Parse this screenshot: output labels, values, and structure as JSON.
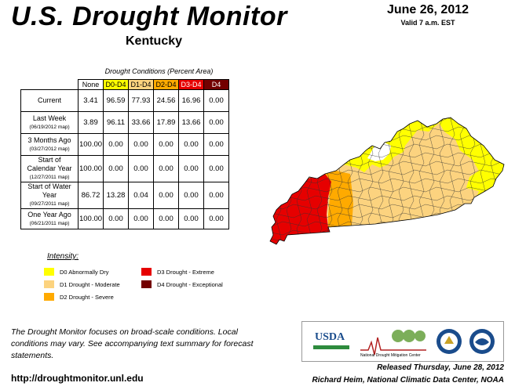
{
  "header": {
    "title": "U.S. Drought Monitor",
    "subtitle": "Kentucky",
    "date": "June 26, 2012",
    "valid": "Valid 7 a.m. EST"
  },
  "table": {
    "caption": "Drought Conditions (Percent Area)",
    "columns": [
      "None",
      "D0-D4",
      "D1-D4",
      "D2-D4",
      "D3-D4",
      "D4"
    ],
    "column_colors": [
      "#ffffff",
      "#ffff00",
      "#fcd37f",
      "#ffaa00",
      "#e60000",
      "#730000"
    ],
    "column_text_colors": [
      "#000000",
      "#000000",
      "#000000",
      "#000000",
      "#ffffff",
      "#ffffff"
    ],
    "rows": [
      {
        "label": "Current",
        "sub": "",
        "values": [
          "3.41",
          "96.59",
          "77.93",
          "24.56",
          "16.96",
          "0.00"
        ]
      },
      {
        "label": "Last Week",
        "sub": "(06/19/2012 map)",
        "values": [
          "3.89",
          "96.11",
          "33.66",
          "17.89",
          "13.66",
          "0.00"
        ]
      },
      {
        "label": "3 Months Ago",
        "sub": "(03/27/2012 map)",
        "values": [
          "100.00",
          "0.00",
          "0.00",
          "0.00",
          "0.00",
          "0.00"
        ]
      },
      {
        "label": "Start of Calendar Year",
        "sub": "(12/27/2011 map)",
        "values": [
          "100.00",
          "0.00",
          "0.00",
          "0.00",
          "0.00",
          "0.00"
        ]
      },
      {
        "label": "Start of Water Year",
        "sub": "(09/27/2011 map)",
        "values": [
          "86.72",
          "13.28",
          "0.04",
          "0.00",
          "0.00",
          "0.00"
        ]
      },
      {
        "label": "One Year Ago",
        "sub": "(06/21/2011 map)",
        "values": [
          "100.00",
          "0.00",
          "0.00",
          "0.00",
          "0.00",
          "0.00"
        ]
      }
    ]
  },
  "legend": {
    "heading": "Intensity:",
    "items": [
      {
        "label": "D0 Abnormally Dry",
        "color": "#ffff00"
      },
      {
        "label": "D1 Drought - Moderate",
        "color": "#fcd37f"
      },
      {
        "label": "D2 Drought - Severe",
        "color": "#ffaa00"
      },
      {
        "label": "D3 Drought - Extreme",
        "color": "#e60000"
      },
      {
        "label": "D4 Drought - Exceptional",
        "color": "#730000"
      }
    ]
  },
  "footer": {
    "note": "The Drought Monitor focuses on broad-scale conditions. Local conditions may vary. See accompanying text summary for forecast statements.",
    "url": "http://droughtmonitor.unl.edu",
    "released": "Released Thursday, June 28, 2012",
    "author": "Richard Heim, National Climatic Data Center, NOAA"
  },
  "logos": {
    "usda": "USDA",
    "ndmc": "National Drought Mitigation Center"
  },
  "map_colors": {
    "none": "#ffffff",
    "d0": "#ffff00",
    "d1": "#fcd37f",
    "d2": "#ffaa00",
    "d3": "#e60000",
    "county_line": "#333333"
  }
}
